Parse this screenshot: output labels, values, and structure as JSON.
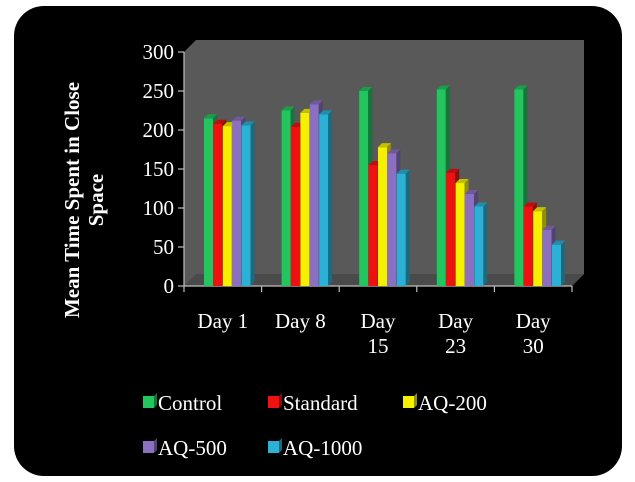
{
  "chart_data": {
    "type": "bar",
    "title": "",
    "xlabel": "",
    "ylabel": [
      "Mean Time Spent in  Close",
      "Space"
    ],
    "ylim": [
      0,
      300
    ],
    "yticks": [
      0,
      50,
      100,
      150,
      200,
      250,
      300
    ],
    "categories": [
      [
        "Day 1"
      ],
      [
        "Day 8"
      ],
      [
        "Day",
        "15"
      ],
      [
        "Day",
        "23"
      ],
      [
        "Day",
        "30"
      ]
    ],
    "grid": false,
    "legend_position": "bottom",
    "series": [
      {
        "name": "Control",
        "color": "#22c55e",
        "values": [
          215,
          225,
          250,
          252,
          252
        ]
      },
      {
        "name": "Standard",
        "color": "#ef1010",
        "values": [
          208,
          204,
          155,
          145,
          102
        ]
      },
      {
        "name": "AQ-200",
        "color": "#f5ef00",
        "values": [
          205,
          222,
          178,
          132,
          96
        ]
      },
      {
        "name": "AQ-500",
        "color": "#8b6fc0",
        "values": [
          212,
          233,
          170,
          118,
          72
        ]
      },
      {
        "name": "AQ-1000",
        "color": "#2bb0d6",
        "values": [
          206,
          220,
          144,
          102,
          53
        ]
      }
    ]
  },
  "colors": {
    "background": "#000000",
    "plot_area": "#595959",
    "axis": "#bfbfbf",
    "text": "#ffffff"
  }
}
